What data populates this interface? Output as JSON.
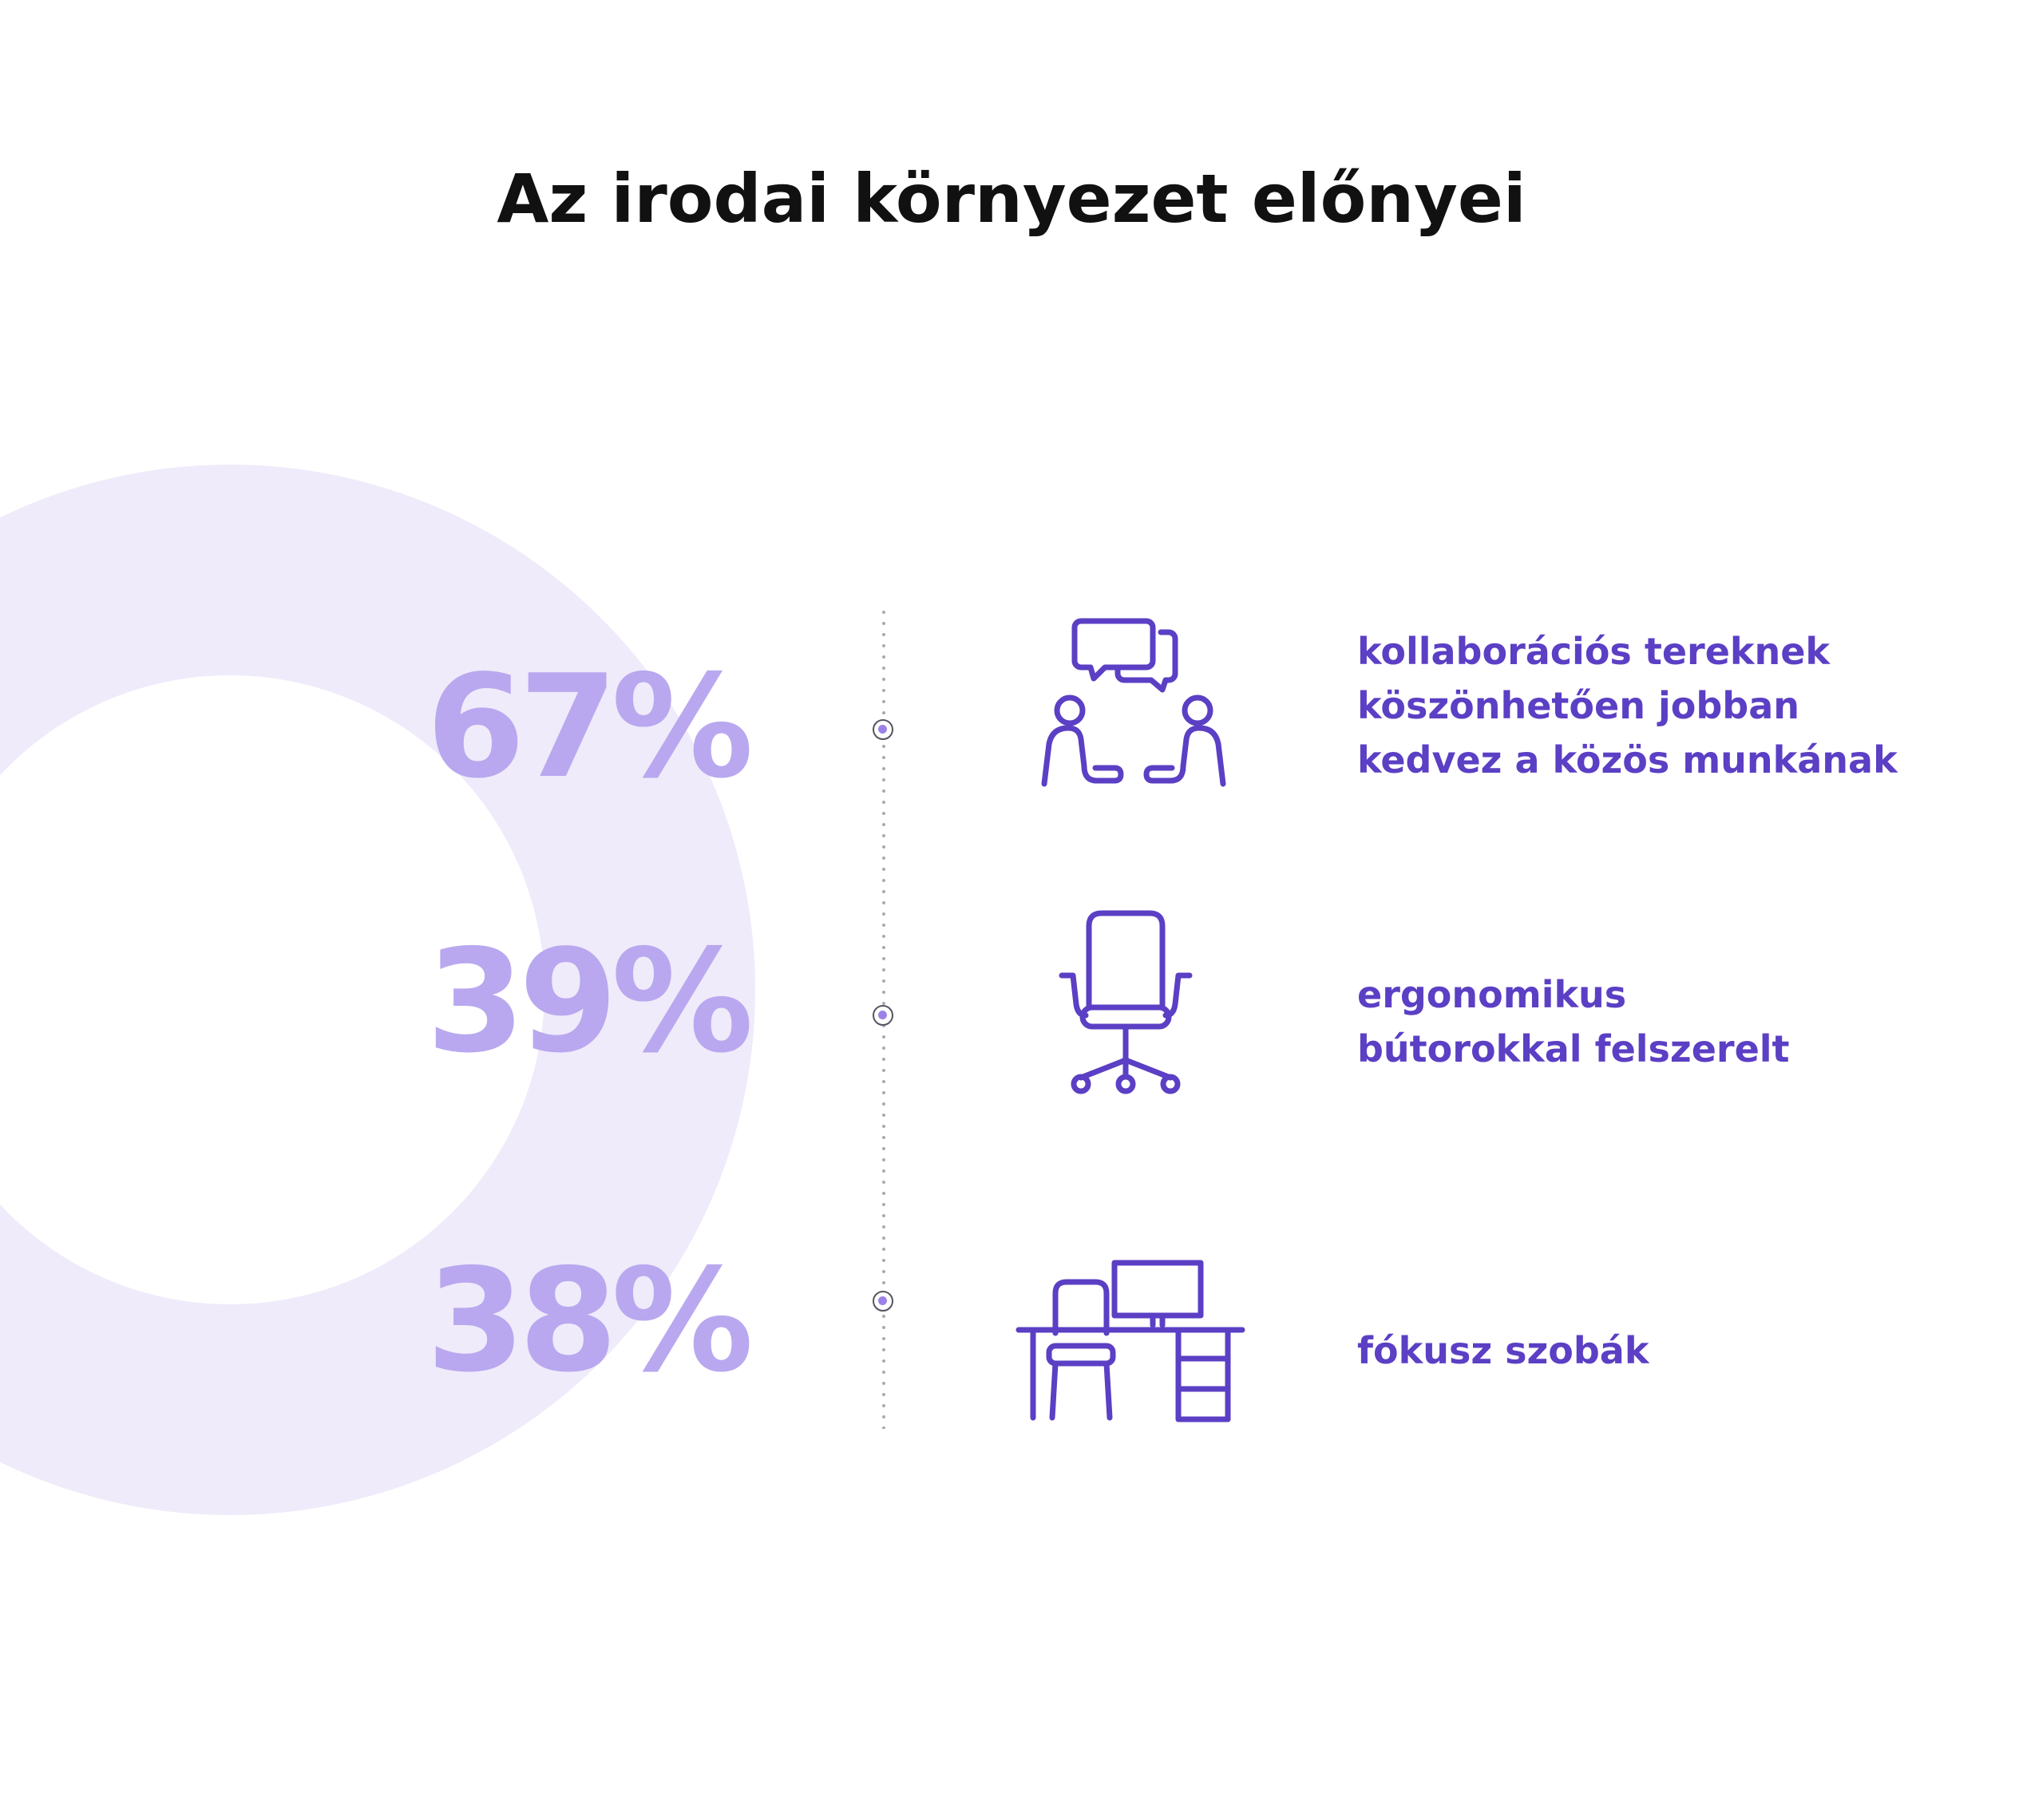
{
  "title": "Az irodai környezet előnyei",
  "colors": {
    "accent": "#5b3fc4",
    "stat": "#b9a8ef",
    "ring": "#efebfa",
    "node_fill": "#9c82e8"
  },
  "items": [
    {
      "value": "67%",
      "percent": 67,
      "icon": "conversation-icon",
      "lines": [
        "kollaborációs tereknek",
        "köszönhetően jobban",
        "kedvez a közös munkának"
      ]
    },
    {
      "value": "39%",
      "percent": 39,
      "icon": "office-chair-icon",
      "lines": [
        "ergonomikus",
        "bútorokkal felszerelt"
      ]
    },
    {
      "value": "38%",
      "percent": 38,
      "icon": "desk-workstation-icon",
      "lines": [
        "fókusz szobák"
      ]
    }
  ]
}
